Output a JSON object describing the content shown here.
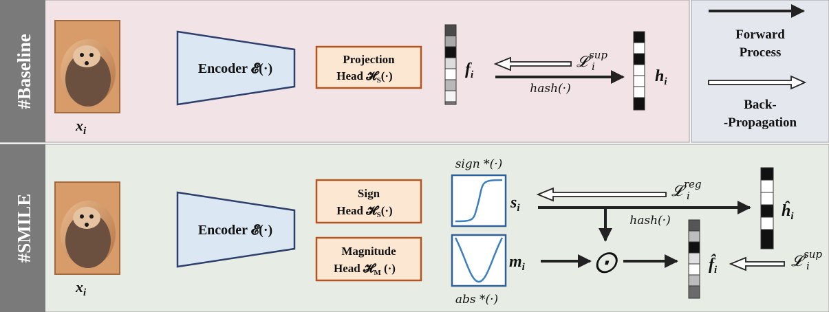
{
  "baseline": {
    "section_label": "#Baseline",
    "input_label": "x",
    "input_sub": "i",
    "encoder_label": "Encoder 𝓔(·)",
    "proj_head_line1": "Projection",
    "proj_head_line2": "Head 𝓗",
    "proj_head_sub": "S",
    "proj_head_arg": "(·)",
    "feature_label": "f",
    "feature_sub": "i",
    "loss_symbol": "𝓛",
    "loss_sup": "sup",
    "loss_sub": "i",
    "hash_label": "hash(·)",
    "code_label": "h",
    "code_sub": "i"
  },
  "legend": {
    "forward_line1": "Forward",
    "forward_line2": "Process",
    "back_line1": "Back-",
    "back_line2": "-Propagation"
  },
  "smile": {
    "section_label": "#SMILE",
    "input_label": "x",
    "input_sub": "i",
    "encoder_label": "Encoder 𝓔(·)",
    "sign_head_line1": "Sign",
    "sign_head_line2": "Head 𝓗",
    "sign_head_sub": "S",
    "sign_head_arg": "(·)",
    "mag_head_line1": "Magnitude",
    "mag_head_line2": "Head 𝓗",
    "mag_head_sub": "M",
    "mag_head_arg": " (·)",
    "sign_fn_label": "sign *(·)",
    "abs_fn_label": "abs *(·)",
    "sign_out": "s",
    "sign_out_sub": "i",
    "mag_out": "m",
    "mag_out_sub": "i",
    "loss_reg_symbol": "𝓛",
    "loss_reg_sup": "reg",
    "loss_reg_sub": "i",
    "hash_label": "hash(·)",
    "hcode_label": "ĥ",
    "hcode_sub": "i",
    "product_symbol": "⨀",
    "fhat_label": "f̂",
    "fhat_sub": "i",
    "loss_sup_symbol": "𝓛",
    "loss_sup_sup": "sup",
    "loss_sup_sub": "i"
  },
  "colors": {
    "baseline_bg": "#f2e4e6",
    "smile_bg": "#e7ede5",
    "legend_bg": "#e4e8ee",
    "sidebar": "#7a7a7a",
    "head_fill": "#fbe7d2",
    "head_stroke": "#b5531f",
    "encoder_fill": "#dbe8f4",
    "encoder_stroke": "#2f3f6b",
    "fn_stroke": "#2d5f9a",
    "curve": "#3a7fc0"
  }
}
